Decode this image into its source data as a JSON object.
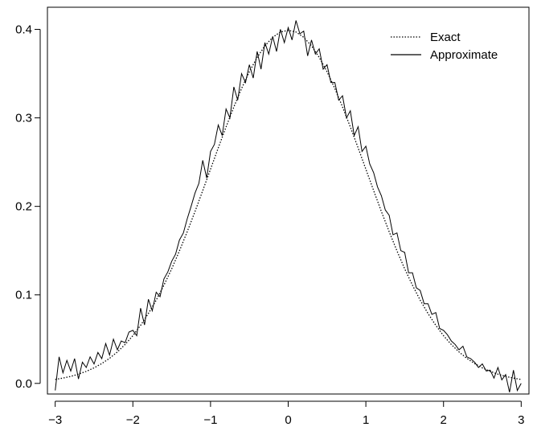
{
  "chart_data": {
    "type": "line",
    "title": "",
    "xlabel": "",
    "ylabel": "",
    "xlim": [
      -3.1,
      3.1
    ],
    "ylim": [
      -0.012,
      0.425
    ],
    "x_ticks": [
      -3,
      -2,
      -1,
      0,
      1,
      2,
      3
    ],
    "x_tick_labels": [
      "−3",
      "−2",
      "−1",
      "0",
      "1",
      "2",
      "3"
    ],
    "y_ticks": [
      0.0,
      0.1,
      0.2,
      0.3,
      0.4
    ],
    "y_tick_labels": [
      "0.0",
      "0.1",
      "0.2",
      "0.3",
      "0.4"
    ],
    "grid": false,
    "legend": "top-right",
    "series": [
      {
        "name": "Exact",
        "style": "dotted",
        "color": "#000000",
        "x": [
          -3.0,
          -2.9,
          -2.8,
          -2.7,
          -2.6,
          -2.5,
          -2.4,
          -2.3,
          -2.2,
          -2.1,
          -2.0,
          -1.9,
          -1.8,
          -1.7,
          -1.6,
          -1.5,
          -1.4,
          -1.3,
          -1.2,
          -1.1,
          -1.0,
          -0.9,
          -0.8,
          -0.7,
          -0.6,
          -0.5,
          -0.4,
          -0.3,
          -0.2,
          -0.1,
          0.0,
          0.1,
          0.2,
          0.3,
          0.4,
          0.5,
          0.6,
          0.7,
          0.8,
          0.9,
          1.0,
          1.1,
          1.2,
          1.3,
          1.4,
          1.5,
          1.6,
          1.7,
          1.8,
          1.9,
          2.0,
          2.1,
          2.2,
          2.3,
          2.4,
          2.5,
          2.6,
          2.7,
          2.8,
          2.9,
          3.0
        ],
        "y": [
          0.0044,
          0.006,
          0.0079,
          0.0104,
          0.0136,
          0.0175,
          0.0224,
          0.0283,
          0.0355,
          0.044,
          0.054,
          0.0656,
          0.079,
          0.094,
          0.1109,
          0.1295,
          0.1497,
          0.1714,
          0.1942,
          0.2179,
          0.242,
          0.2661,
          0.2897,
          0.3123,
          0.3332,
          0.3521,
          0.3683,
          0.3814,
          0.391,
          0.397,
          0.3989,
          0.397,
          0.391,
          0.3814,
          0.3683,
          0.3521,
          0.3332,
          0.3123,
          0.2897,
          0.2661,
          0.242,
          0.2179,
          0.1942,
          0.1714,
          0.1497,
          0.1295,
          0.1109,
          0.094,
          0.079,
          0.0656,
          0.054,
          0.044,
          0.0355,
          0.0283,
          0.0224,
          0.0175,
          0.0136,
          0.0104,
          0.0079,
          0.006,
          0.0044
        ]
      },
      {
        "name": "Approximate",
        "style": "solid",
        "color": "#000000",
        "x": [
          -3.0,
          -2.95,
          -2.9,
          -2.85,
          -2.8,
          -2.75,
          -2.7,
          -2.65,
          -2.6,
          -2.55,
          -2.5,
          -2.45,
          -2.4,
          -2.35,
          -2.3,
          -2.25,
          -2.2,
          -2.15,
          -2.1,
          -2.05,
          -2.0,
          -1.95,
          -1.9,
          -1.85,
          -1.8,
          -1.75,
          -1.7,
          -1.65,
          -1.6,
          -1.55,
          -1.5,
          -1.45,
          -1.4,
          -1.35,
          -1.3,
          -1.25,
          -1.2,
          -1.15,
          -1.1,
          -1.05,
          -1.0,
          -0.95,
          -0.9,
          -0.85,
          -0.8,
          -0.75,
          -0.7,
          -0.65,
          -0.6,
          -0.55,
          -0.5,
          -0.45,
          -0.4,
          -0.35,
          -0.3,
          -0.25,
          -0.2,
          -0.15,
          -0.1,
          -0.05,
          0.0,
          0.05,
          0.1,
          0.15,
          0.2,
          0.25,
          0.3,
          0.35,
          0.4,
          0.45,
          0.5,
          0.55,
          0.6,
          0.65,
          0.7,
          0.75,
          0.8,
          0.85,
          0.9,
          0.95,
          1.0,
          1.05,
          1.1,
          1.15,
          1.2,
          1.25,
          1.3,
          1.35,
          1.4,
          1.45,
          1.5,
          1.55,
          1.6,
          1.65,
          1.7,
          1.75,
          1.8,
          1.85,
          1.9,
          1.95,
          2.0,
          2.05,
          2.1,
          2.15,
          2.2,
          2.25,
          2.3,
          2.35,
          2.4,
          2.45,
          2.5,
          2.55,
          2.6,
          2.65,
          2.7,
          2.75,
          2.8,
          2.85,
          2.9,
          2.95,
          3.0
        ],
        "y": [
          -0.008,
          0.03,
          0.012,
          0.026,
          0.014,
          0.028,
          0.005,
          0.024,
          0.018,
          0.03,
          0.022,
          0.035,
          0.028,
          0.045,
          0.032,
          0.05,
          0.038,
          0.048,
          0.046,
          0.058,
          0.06,
          0.054,
          0.085,
          0.066,
          0.095,
          0.082,
          0.103,
          0.098,
          0.118,
          0.126,
          0.138,
          0.146,
          0.162,
          0.17,
          0.186,
          0.2,
          0.215,
          0.226,
          0.252,
          0.232,
          0.262,
          0.27,
          0.292,
          0.28,
          0.31,
          0.3,
          0.335,
          0.32,
          0.35,
          0.34,
          0.36,
          0.345,
          0.375,
          0.355,
          0.385,
          0.372,
          0.392,
          0.375,
          0.4,
          0.385,
          0.402,
          0.388,
          0.41,
          0.395,
          0.398,
          0.37,
          0.388,
          0.372,
          0.378,
          0.355,
          0.36,
          0.34,
          0.34,
          0.32,
          0.325,
          0.3,
          0.308,
          0.28,
          0.29,
          0.262,
          0.268,
          0.248,
          0.238,
          0.222,
          0.212,
          0.196,
          0.19,
          0.168,
          0.17,
          0.15,
          0.148,
          0.125,
          0.125,
          0.108,
          0.105,
          0.09,
          0.09,
          0.078,
          0.08,
          0.062,
          0.06,
          0.055,
          0.048,
          0.044,
          0.038,
          0.042,
          0.03,
          0.028,
          0.024,
          0.018,
          0.022,
          0.014,
          0.015,
          0.006,
          0.018,
          0.004,
          0.01,
          -0.01,
          0.015,
          -0.008,
          0.0
        ]
      }
    ]
  }
}
